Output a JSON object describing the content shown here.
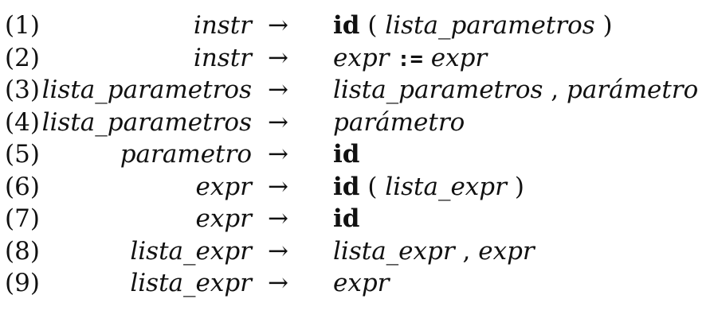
{
  "arrow": "→",
  "rules": [
    {
      "number": "(1)",
      "lhs": "instr",
      "rhs": [
        {
          "t": "kw",
          "v": "id"
        },
        {
          "t": "p",
          "v": "("
        },
        {
          "t": "nt",
          "v": "lista_parametros"
        },
        {
          "t": "p",
          "v": ")"
        }
      ]
    },
    {
      "number": "(2)",
      "lhs": "instr",
      "rhs": [
        {
          "t": "nt",
          "v": "expr"
        },
        {
          "t": "op",
          "v": ":="
        },
        {
          "t": "nt",
          "v": "expr"
        }
      ]
    },
    {
      "number": "(3)",
      "lhs": "lista_parametros",
      "rhs": [
        {
          "t": "nt",
          "v": "lista_parametros"
        },
        {
          "t": "p",
          "v": ","
        },
        {
          "t": "nt",
          "v": "parámetro"
        }
      ]
    },
    {
      "number": "(4)",
      "lhs": "lista_parametros",
      "rhs": [
        {
          "t": "nt",
          "v": "parámetro"
        }
      ]
    },
    {
      "number": "(5)",
      "lhs": "parametro",
      "rhs": [
        {
          "t": "kw",
          "v": "id"
        }
      ]
    },
    {
      "number": "(6)",
      "lhs": "expr",
      "rhs": [
        {
          "t": "kw",
          "v": "id"
        },
        {
          "t": "p",
          "v": "("
        },
        {
          "t": "nt",
          "v": "lista_expr"
        },
        {
          "t": "p",
          "v": ")"
        }
      ]
    },
    {
      "number": "(7)",
      "lhs": "expr",
      "rhs": [
        {
          "t": "kw",
          "v": "id"
        }
      ]
    },
    {
      "number": "(8)",
      "lhs": "lista_expr",
      "rhs": [
        {
          "t": "nt",
          "v": "lista_expr"
        },
        {
          "t": "p",
          "v": ","
        },
        {
          "t": "nt",
          "v": "expr"
        }
      ]
    },
    {
      "number": "(9)",
      "lhs": "lista_expr",
      "rhs": [
        {
          "t": "nt",
          "v": "expr"
        }
      ]
    }
  ]
}
